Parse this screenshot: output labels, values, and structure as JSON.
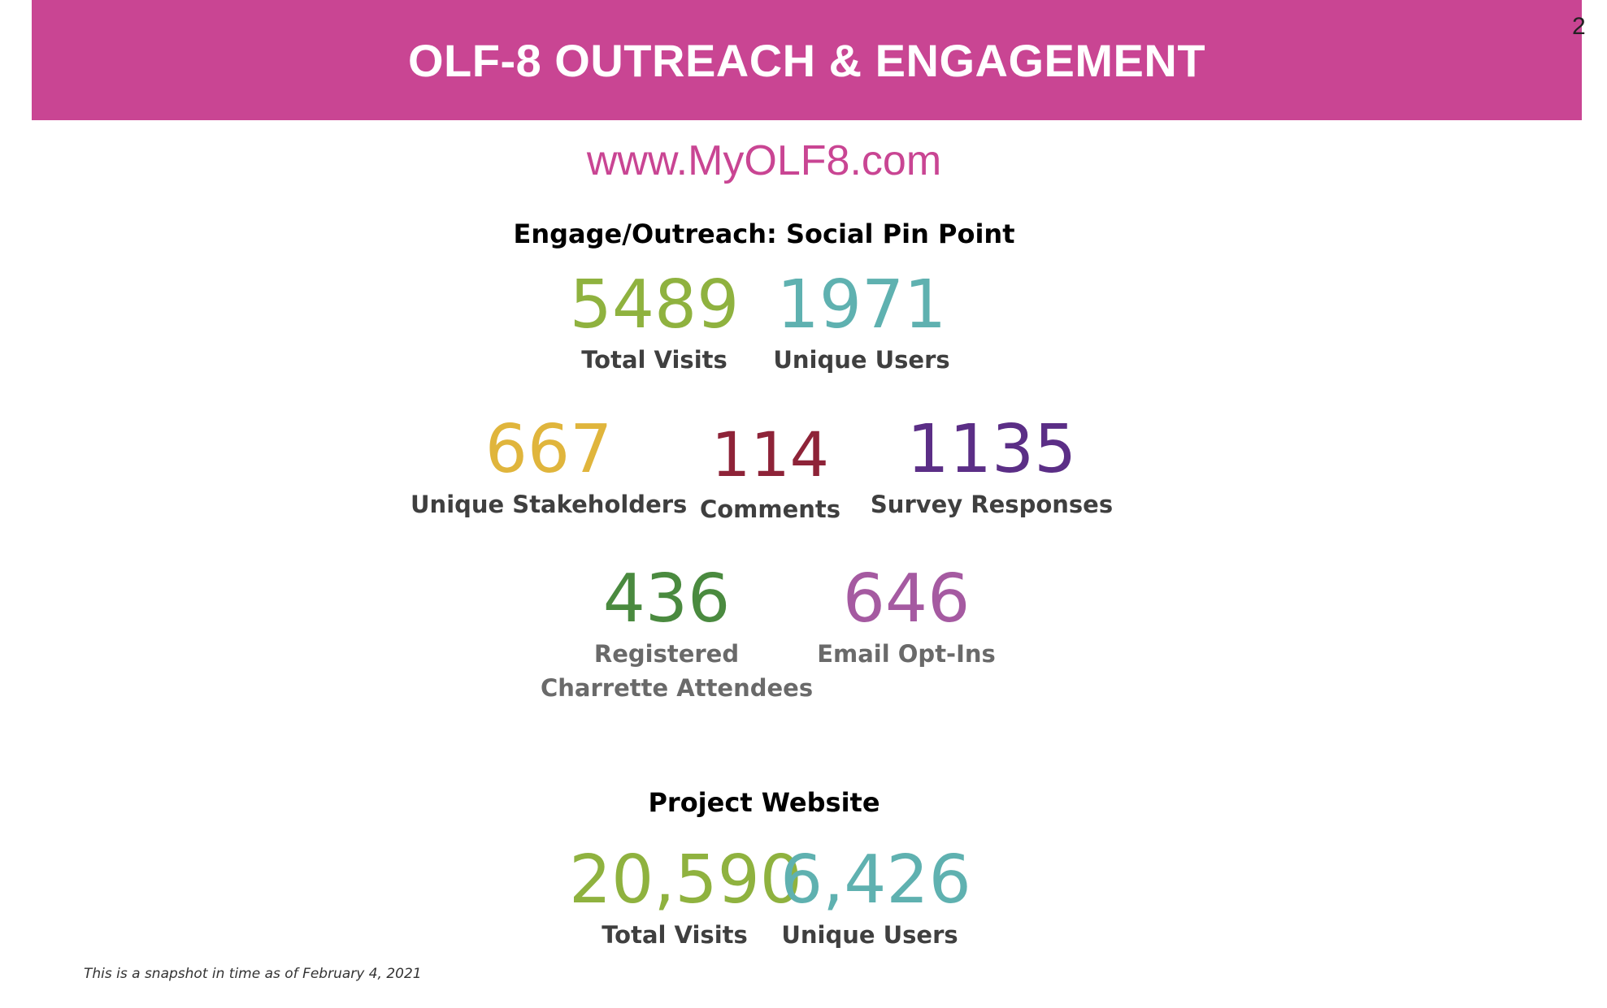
{
  "header": {
    "title": "OLF-8 OUTREACH & ENGAGEMENT",
    "page_number": "2",
    "band_color": "#c94593"
  },
  "url": "www.MyOLF8.com",
  "social_pin_point": {
    "heading": "Engage/Outreach: Social Pin Point",
    "stats": [
      {
        "value": "5489",
        "label": "Total Visits",
        "color": "#8fb23f"
      },
      {
        "value": "1971",
        "label": "Unique Users",
        "color": "#5fb1b0"
      },
      {
        "value": "667",
        "label": "Unique Stakeholders",
        "color": "#e0b53c"
      },
      {
        "value": "114",
        "label": "Comments",
        "color": "#8e2338"
      },
      {
        "value": "1135",
        "label": "Survey Responses",
        "color": "#5b2e86"
      },
      {
        "value": "436",
        "label_line1": "Registered",
        "label_line2": "Charrette Attendees",
        "color": "#4a8a3f"
      },
      {
        "value": "646",
        "label": "Email Opt-Ins",
        "color": "#a55aa1"
      }
    ]
  },
  "project_website": {
    "heading": "Project Website",
    "stats": [
      {
        "value": "20,590",
        "label": "Total Visits",
        "color": "#8fb23f"
      },
      {
        "value": "6,426",
        "label": "Unique Users",
        "color": "#5fb1b0"
      }
    ]
  },
  "footnote": "This is a snapshot in time as of February 4, 2021"
}
